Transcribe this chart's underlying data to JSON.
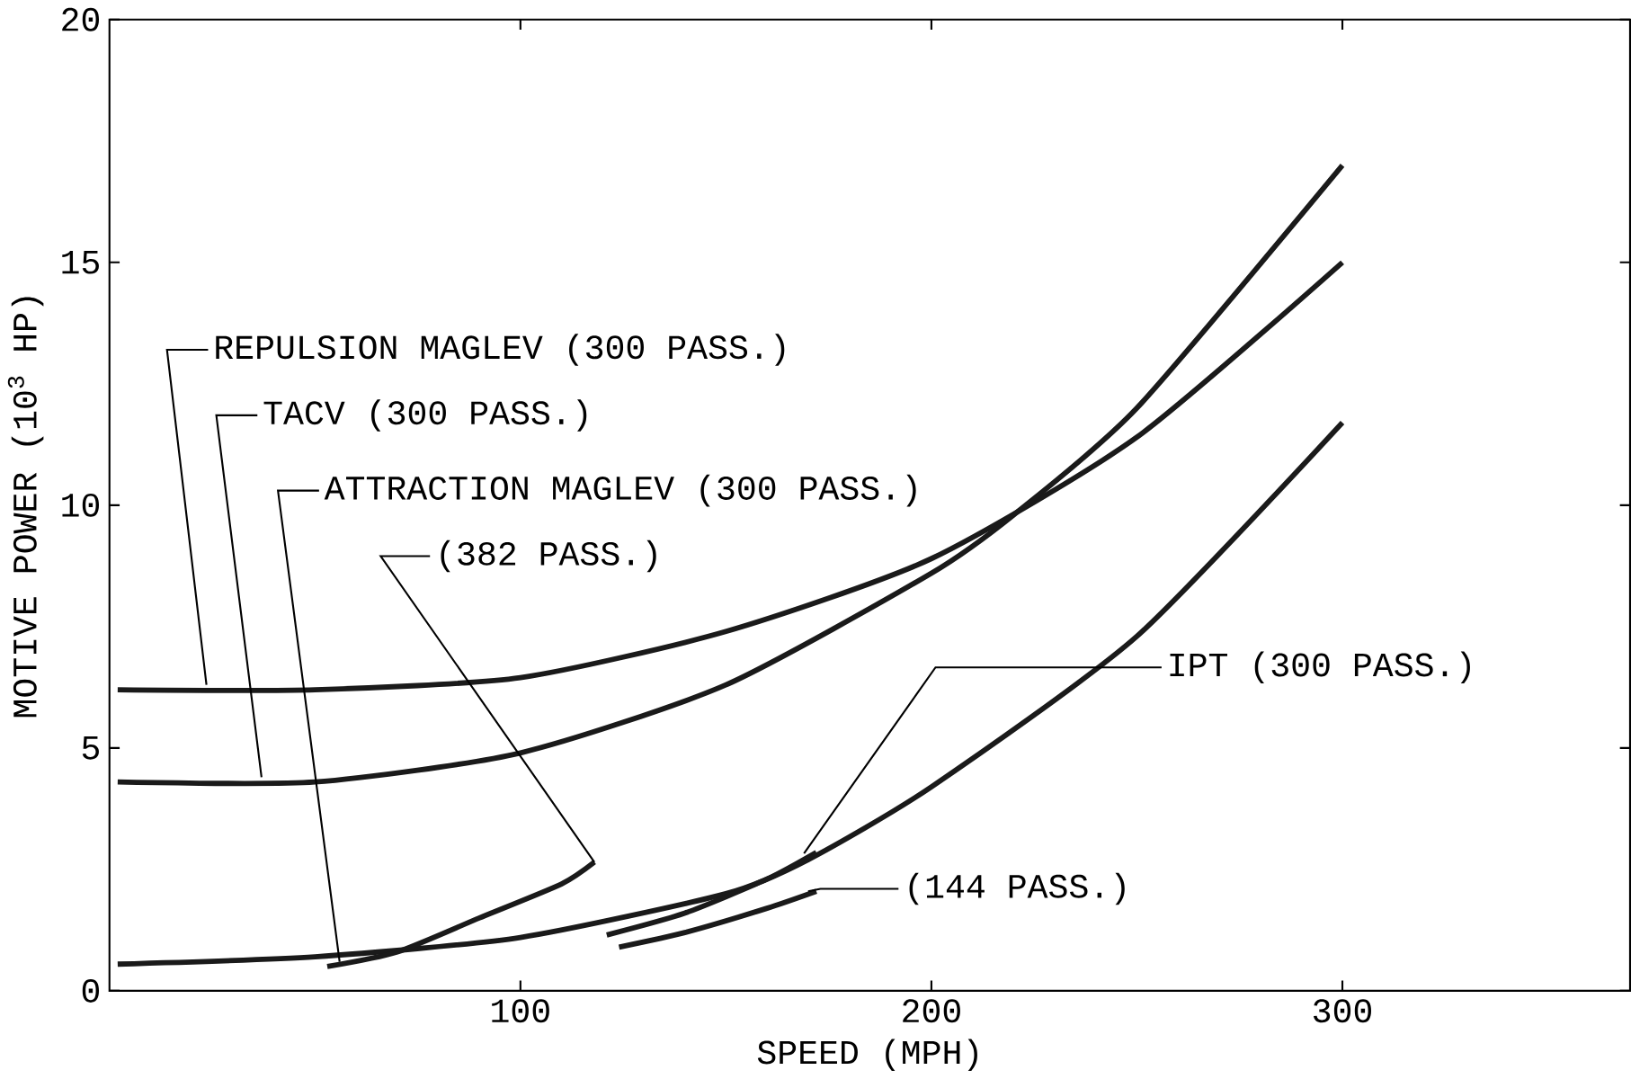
{
  "chart_data": {
    "type": "line",
    "xlabel": "SPEED (MPH)",
    "ylabel": "MOTIVE POWER (10$^{3}$ HP)",
    "xlim": [
      0,
      370
    ],
    "ylim": [
      0,
      20
    ],
    "xticks": [
      100,
      200,
      300
    ],
    "yticks": [
      0,
      5,
      10,
      15,
      20
    ],
    "grid": false,
    "marker": "none",
    "line_style": "solid",
    "color": "#1a1a1a",
    "series": [
      {
        "x": [
          2,
          50,
          100,
          150,
          200,
          250,
          300
        ],
        "values": [
          6.2,
          6.2,
          6.45,
          7.4,
          8.9,
          11.4,
          15.0
        ]
      },
      {
        "x": [
          2,
          50,
          100,
          150,
          200,
          220,
          250,
          300
        ],
        "values": [
          4.3,
          4.3,
          4.9,
          6.3,
          8.6,
          9.8,
          12.0,
          17.0
        ]
      },
      {
        "x": [
          2,
          50,
          100,
          150,
          170,
          200,
          250,
          300
        ],
        "values": [
          0.55,
          0.7,
          1.1,
          2.0,
          2.7,
          4.2,
          7.3,
          11.7
        ]
      },
      {
        "x": [
          53,
          70,
          90,
          110,
          118
        ],
        "values": [
          0.5,
          0.8,
          1.5,
          2.2,
          2.65
        ]
      },
      {
        "x": [
          121,
          140,
          160,
          172
        ],
        "values": [
          1.15,
          1.6,
          2.3,
          2.85
        ]
      },
      {
        "x": [
          124,
          140,
          160,
          172
        ],
        "values": [
          0.9,
          1.2,
          1.7,
          2.05
        ]
      }
    ],
    "annotations": [
      {
        "text": "REPULSION MAGLEV (300 PASS.)",
        "x": 23.6,
        "y": 6.3
      },
      {
        "text": "TACV (300 PASS.)",
        "x": 37,
        "y": 4.4
      },
      {
        "text": "ATTRACTION MAGLEV (300 PASS.)",
        "x": 56,
        "y": 0.6
      },
      {
        "text": "(382 PASS.)",
        "x": 118,
        "y": 2.65
      },
      {
        "text": "IPT (300 PASS.)",
        "x": 169,
        "y": 2.83
      },
      {
        "text": "(144 PASS.)",
        "x": 170,
        "y": 2.05
      }
    ]
  }
}
